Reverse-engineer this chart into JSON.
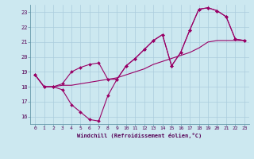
{
  "xlabel": "Windchill (Refroidissement éolien,°C)",
  "bg_color": "#cce8f0",
  "grid_color": "#aaccdd",
  "line_color": "#990066",
  "xlim": [
    -0.5,
    23.5
  ],
  "ylim": [
    15.5,
    23.5
  ],
  "yticks": [
    16,
    17,
    18,
    19,
    20,
    21,
    22,
    23
  ],
  "xticks": [
    0,
    1,
    2,
    3,
    4,
    5,
    6,
    7,
    8,
    9,
    10,
    11,
    12,
    13,
    14,
    15,
    16,
    17,
    18,
    19,
    20,
    21,
    22,
    23
  ],
  "curve1_x": [
    0,
    1,
    2,
    3,
    4,
    5,
    6,
    7,
    8,
    9,
    10,
    11,
    12,
    13,
    14,
    15,
    16,
    17,
    18,
    19,
    20,
    21,
    22,
    23
  ],
  "curve1_y": [
    18.8,
    18.0,
    18.0,
    17.8,
    16.8,
    16.3,
    15.8,
    15.7,
    17.4,
    18.5,
    19.4,
    19.9,
    20.5,
    21.1,
    21.5,
    19.4,
    20.3,
    21.8,
    23.2,
    23.3,
    23.1,
    22.7,
    21.2,
    21.1
  ],
  "curve2_x": [
    0,
    1,
    2,
    3,
    4,
    5,
    6,
    7,
    8,
    9,
    10,
    11,
    12,
    13,
    14,
    15,
    16,
    17,
    18,
    19,
    20,
    21,
    22,
    23
  ],
  "curve2_y": [
    18.8,
    18.0,
    18.0,
    18.1,
    18.1,
    18.2,
    18.3,
    18.4,
    18.5,
    18.6,
    18.8,
    19.0,
    19.2,
    19.5,
    19.7,
    19.9,
    20.1,
    20.3,
    20.6,
    21.0,
    21.1,
    21.1,
    21.1,
    21.1
  ],
  "curve3_x": [
    0,
    1,
    2,
    3,
    4,
    5,
    6,
    7,
    8,
    9,
    10,
    11,
    12,
    13,
    14,
    15,
    16,
    17,
    18,
    19,
    20,
    21,
    22,
    23
  ],
  "curve3_y": [
    18.8,
    18.0,
    18.0,
    18.2,
    19.0,
    19.3,
    19.5,
    19.6,
    18.5,
    18.5,
    19.4,
    19.9,
    20.5,
    21.1,
    21.5,
    19.4,
    20.3,
    21.8,
    23.2,
    23.3,
    23.1,
    22.7,
    21.2,
    21.1
  ]
}
